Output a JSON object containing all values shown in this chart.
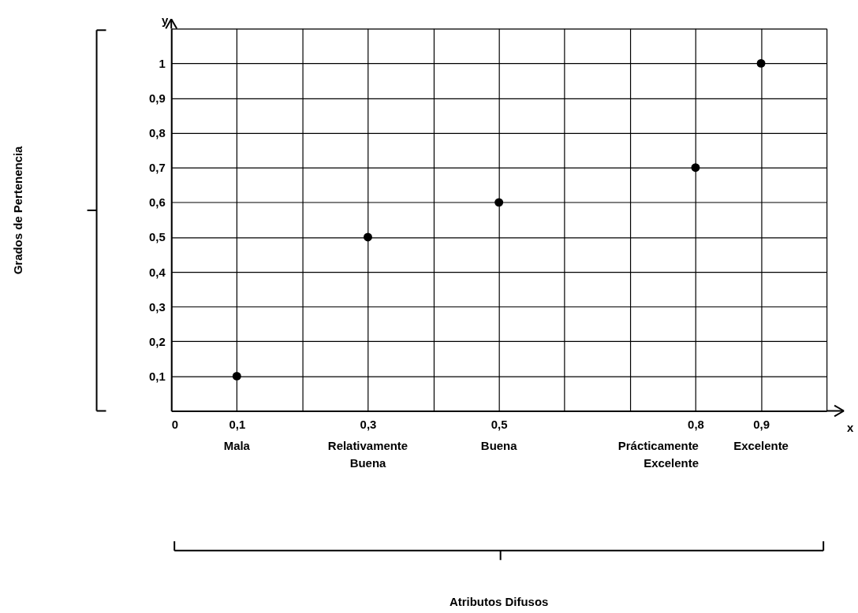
{
  "chart_data": {
    "type": "scatter",
    "xlabel": "x",
    "ylabel": "y",
    "x": [
      0.1,
      0.3,
      0.5,
      0.8,
      0.9
    ],
    "series": [
      {
        "color": "#000000",
        "values": [
          0.1,
          0.5,
          0.6,
          0.7,
          1.0
        ]
      }
    ],
    "marker": "circle",
    "xlim": [
      0,
      1.0
    ],
    "ylim": [
      0,
      1.1
    ],
    "xticks": [
      {
        "value": 0,
        "label": "0"
      },
      {
        "value": 0.1,
        "label": "0,1"
      },
      {
        "value": 0.2,
        "label": null
      },
      {
        "value": 0.3,
        "label": "0,3"
      },
      {
        "value": 0.4,
        "label": null
      },
      {
        "value": 0.5,
        "label": "0,5"
      },
      {
        "value": 0.6,
        "label": null
      },
      {
        "value": 0.7,
        "label": null
      },
      {
        "value": 0.8,
        "label": "0,8"
      },
      {
        "value": 0.9,
        "label": "0,9"
      },
      {
        "value": 1.0,
        "label": null
      }
    ],
    "yticks": [
      {
        "value": 0.1,
        "label": "0,1"
      },
      {
        "value": 0.2,
        "label": "0,2"
      },
      {
        "value": 0.3,
        "label": "0,3"
      },
      {
        "value": 0.4,
        "label": "0,4"
      },
      {
        "value": 0.5,
        "label": "0,5"
      },
      {
        "value": 0.6,
        "label": "0,6"
      },
      {
        "value": 0.7,
        "label": "0,7"
      },
      {
        "value": 0.8,
        "label": "0,8"
      },
      {
        "value": 0.9,
        "label": "0,9"
      },
      {
        "value": 1,
        "label": "1"
      },
      {
        "value": 1.1,
        "label": null
      }
    ],
    "grid": true,
    "annotations": [
      "Grados de Pertenencia",
      "Atributos Difusos",
      "Mala",
      "Relativamente Buena",
      "Buena",
      "Prácticamente Excelente",
      "Excelente"
    ]
  }
}
